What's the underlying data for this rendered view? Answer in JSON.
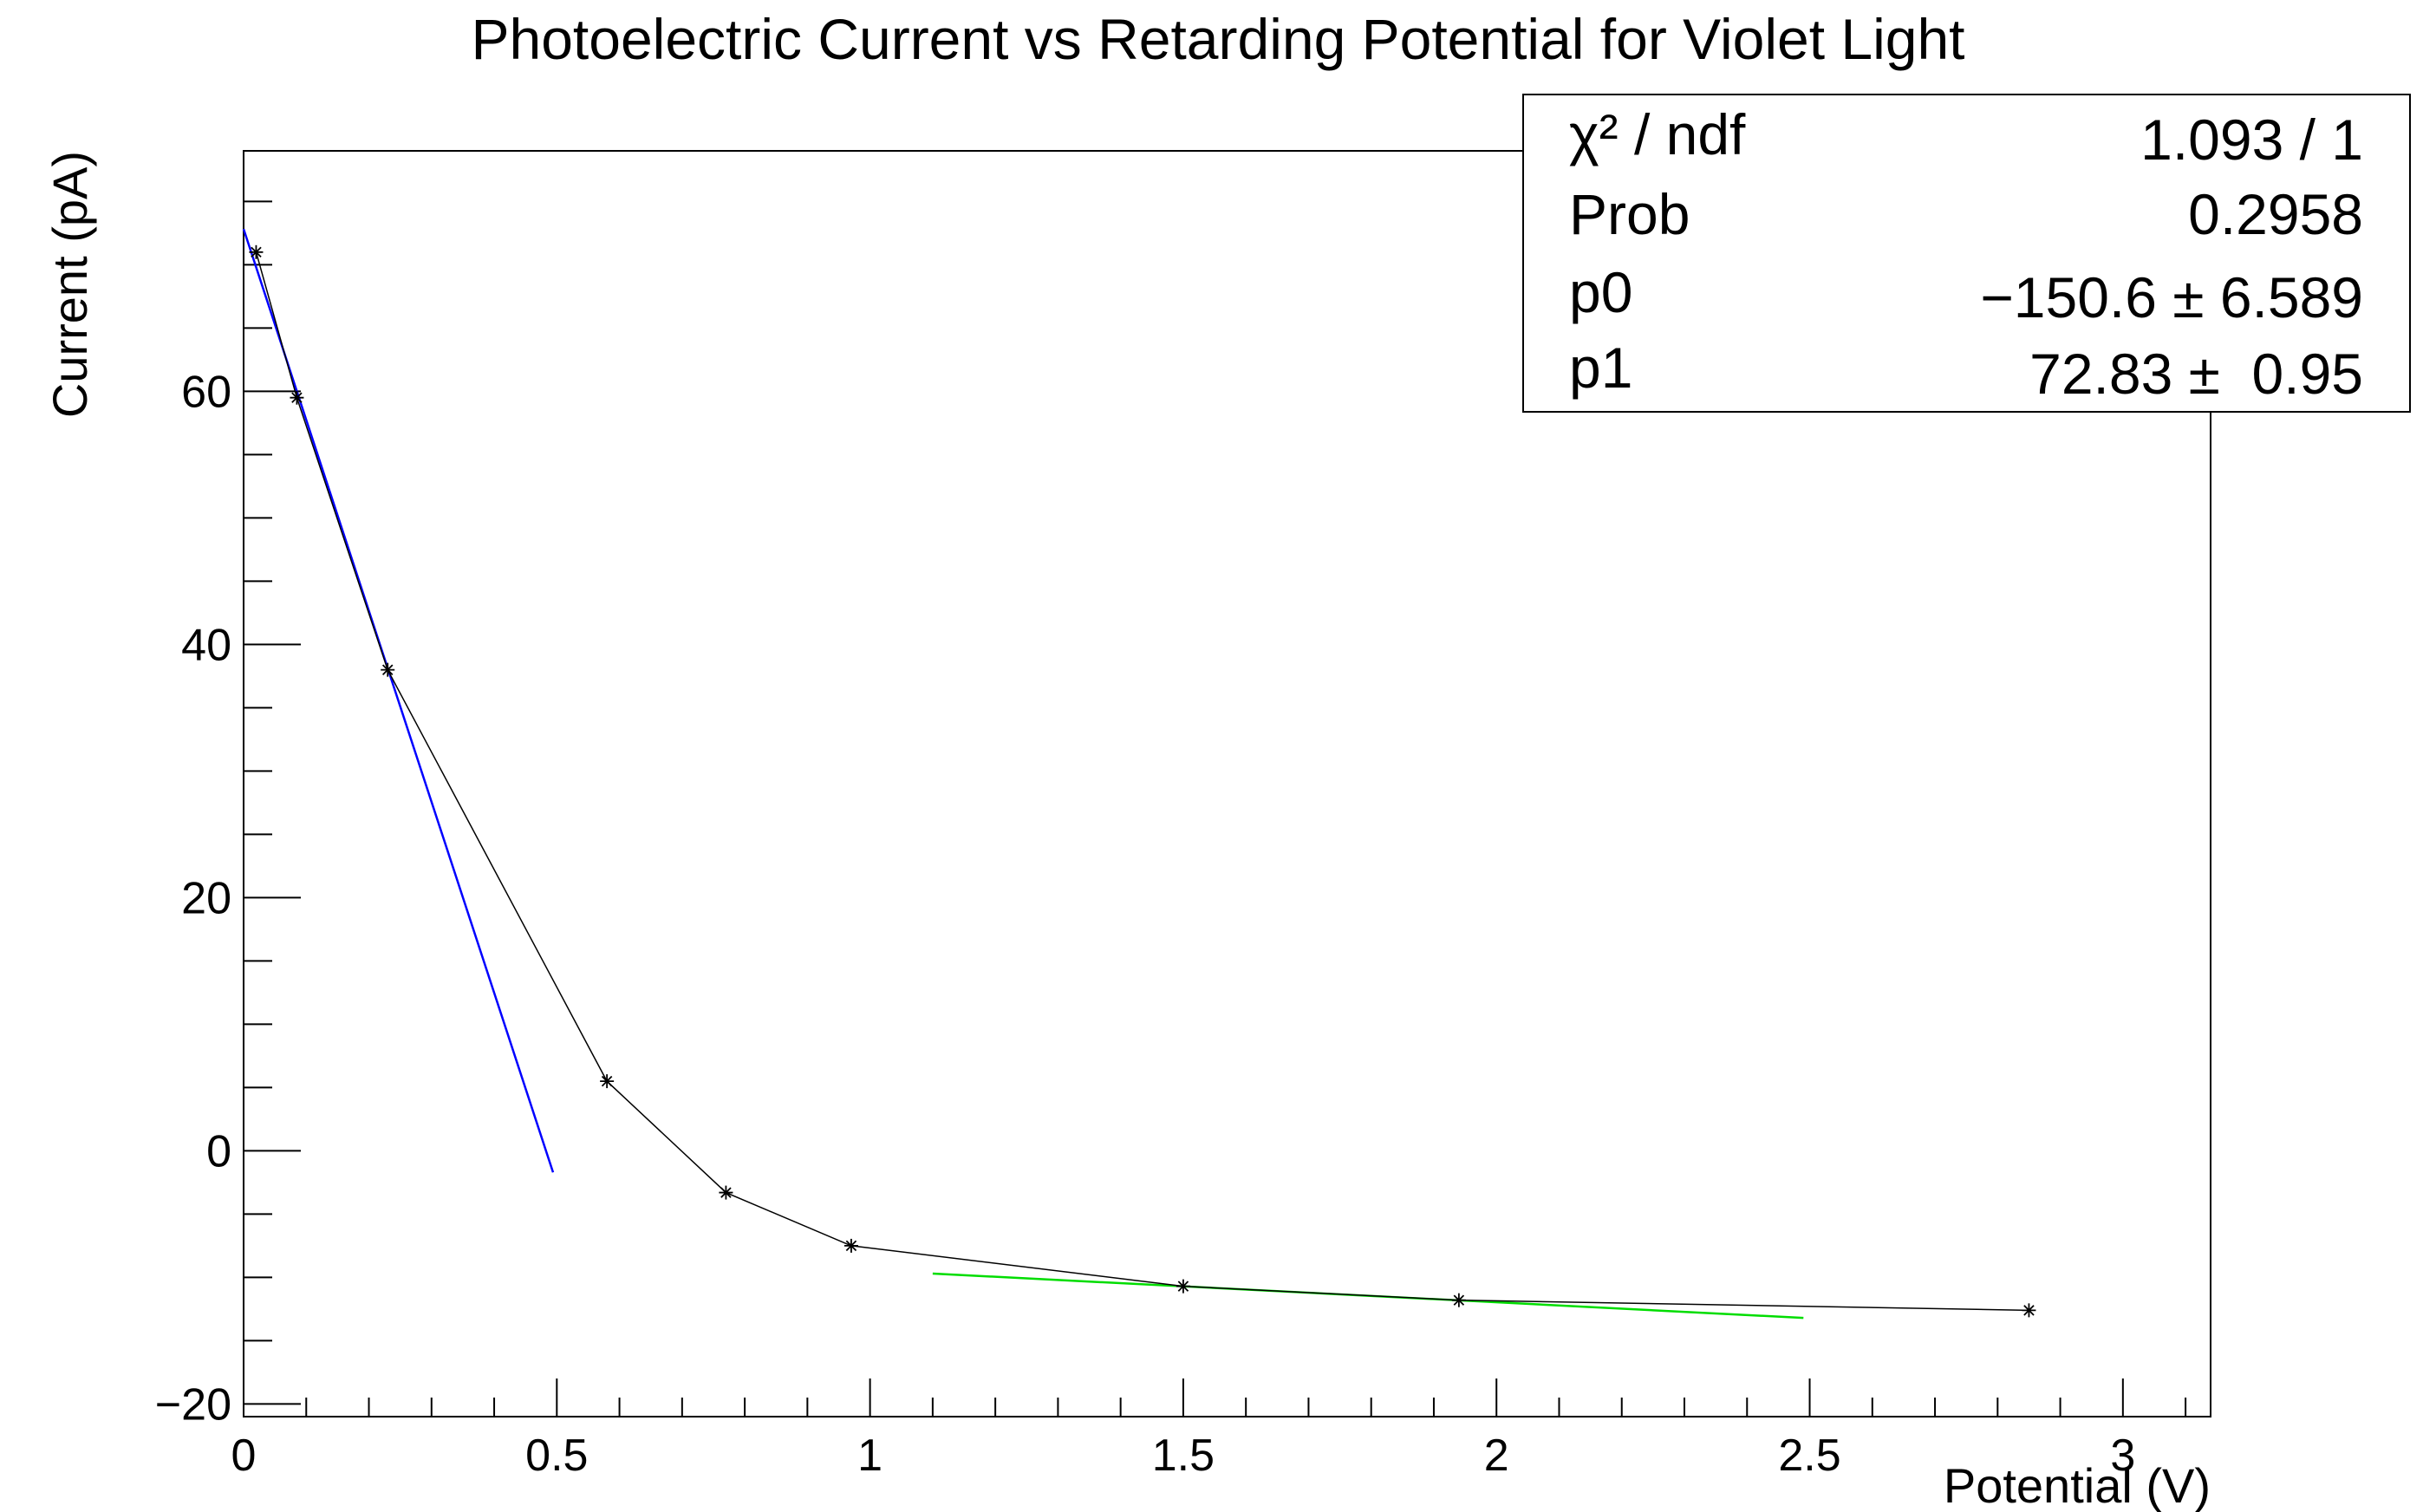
{
  "chart_data": {
    "type": "line",
    "title": "Photoelectric Current vs Retarding Potential for Violet Light",
    "xlabel": "Potential (V)",
    "ylabel": "Current (pA)",
    "xlim": [
      0,
      3.14
    ],
    "ylim": [
      -21,
      79
    ],
    "xticks": [
      0,
      0.5,
      1,
      1.5,
      2,
      2.5,
      3
    ],
    "xtick_labels": [
      "0",
      "0.5",
      "1",
      "1.5",
      "2",
      "2.5",
      "3"
    ],
    "yticks": [
      -20,
      0,
      20,
      40,
      60
    ],
    "ytick_labels": [
      "−20",
      "0",
      "20",
      "40",
      "60"
    ],
    "grid": false,
    "series": [
      {
        "color": "#000000",
        "marker": "star",
        "x": [
          0.02,
          0.085,
          0.23,
          0.58,
          0.77,
          0.97,
          1.5,
          1.94,
          2.85
        ],
        "y": [
          71,
          59.5,
          38,
          5.5,
          -3.3,
          -7.5,
          -10.7,
          -11.8,
          -12.6
        ]
      }
    ],
    "fits": [
      {
        "color": "#0000ff",
        "x": [
          0,
          0.494
        ],
        "y": [
          72.83,
          -1.7
        ]
      },
      {
        "color": "#00dd00",
        "x": [
          1.1,
          2.49
        ],
        "y": [
          -9.7,
          -13.2
        ]
      }
    ],
    "stats_box": {
      "legend_position": "top-right",
      "rows": [
        {
          "label": "χ² / ndf",
          "value": "1.093 / 1"
        },
        {
          "label": "Prob",
          "value": "0.2958"
        },
        {
          "label": "p0",
          "value": "−150.6 ± 6.589"
        },
        {
          "label": "p1",
          "value": "72.83 ±  0.95"
        }
      ]
    }
  }
}
